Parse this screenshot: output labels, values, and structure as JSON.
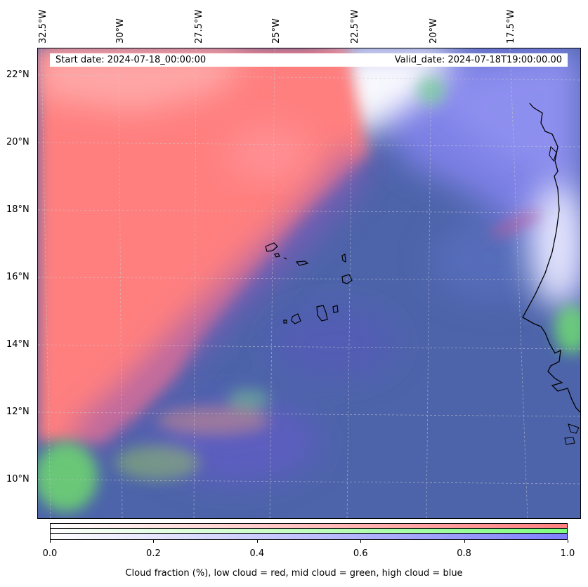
{
  "map": {
    "info": {
      "start_date": "Start date: 2024-07-18_00:00:00",
      "valid_date": "Valid_date: 2024-07-18T19:00:00.00"
    },
    "lon_labels": [
      "32.5°W",
      "30°W",
      "27.5°W",
      "25°W",
      "22.5°W",
      "20°W",
      "17.5°W"
    ],
    "lat_labels": [
      "22°N",
      "20°N",
      "18°N",
      "16°N",
      "14°N",
      "12°N",
      "10°N"
    ],
    "colors": {
      "low_cloud": "#ff7f7f",
      "mid_cloud": "#7fff7f",
      "high_cloud": "#7f7fff",
      "ocean_base": "#4a67a8",
      "coastline": "#000000"
    }
  },
  "colorbar": {
    "tick_labels": [
      "0.0",
      "0.2",
      "0.4",
      "0.6",
      "0.8",
      "1.0"
    ],
    "caption": "Cloud fraction (%), low cloud = red, mid cloud = green, high cloud = blue",
    "rows": [
      "low",
      "mid",
      "high"
    ]
  }
}
